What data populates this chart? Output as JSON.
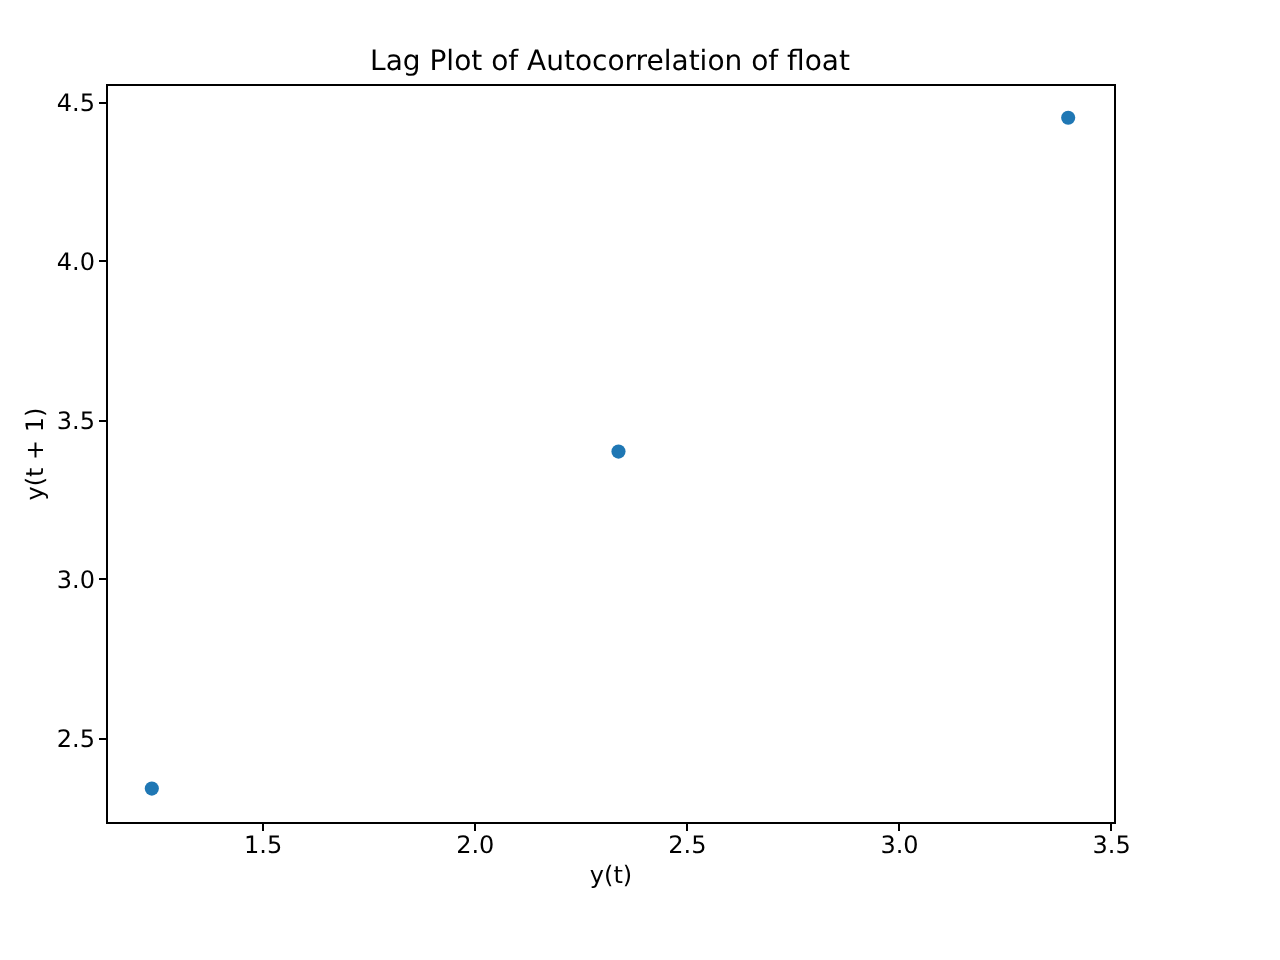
{
  "chart_data": {
    "type": "scatter",
    "title": "Lag Plot of Autocorrelation of float",
    "xlabel": "y(t)",
    "ylabel": "y(t + 1)",
    "x": [
      1.24,
      2.34,
      3.4
    ],
    "series": [
      {
        "color": "#1f77b4",
        "values": [
          2.34,
          3.4,
          4.45
        ]
      }
    ],
    "xlim": [
      1.132,
      3.508
    ],
    "ylim": [
      2.235,
      4.556
    ],
    "xticks": [
      {
        "value": 1.5,
        "label": "1.5"
      },
      {
        "value": 2.0,
        "label": "2.0"
      },
      {
        "value": 2.5,
        "label": "2.5"
      },
      {
        "value": 3.0,
        "label": "3.0"
      },
      {
        "value": 3.5,
        "label": "3.5"
      }
    ],
    "yticks": [
      {
        "value": 2.5,
        "label": "2.5"
      },
      {
        "value": 3.0,
        "label": "3.0"
      },
      {
        "value": 3.5,
        "label": "3.5"
      },
      {
        "value": 4.0,
        "label": "4.0"
      },
      {
        "value": 4.5,
        "label": "4.5"
      }
    ],
    "grid": false,
    "marker": "circle"
  }
}
